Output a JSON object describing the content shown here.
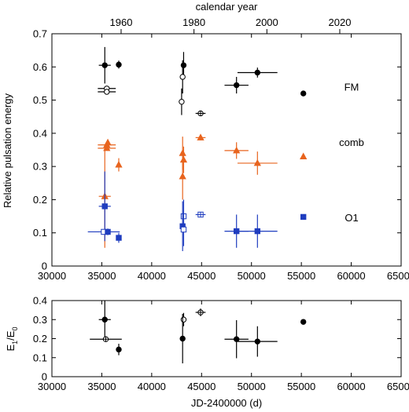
{
  "chart_data": [
    {
      "type": "scatter",
      "top_axis_label": "calendar year",
      "top_ticks": [
        "1960",
        "1980",
        "2000",
        "2020"
      ],
      "top_tick_years": [
        1960,
        1980,
        2000,
        2020
      ],
      "ylabel": "Relative pulsation energy",
      "xlim": [
        30000,
        65000
      ],
      "ylim": [
        0,
        0.7
      ],
      "xticks": [
        30000,
        35000,
        40000,
        45000,
        50000,
        55000,
        60000,
        65000
      ],
      "yticks": [
        0,
        0.1,
        0.2,
        0.3,
        0.4,
        0.5,
        0.6,
        0.7
      ],
      "colors": {
        "FM": "#000000",
        "comb": "#e8641e",
        "O1": "#1f3dbf"
      },
      "series": [
        {
          "name": "FM",
          "points": [
            {
              "x": 35300,
              "y": 0.605,
              "xerr": 600,
              "yerr": 0.055,
              "marker": "filled-circle"
            },
            {
              "x": 35500,
              "y": 0.535,
              "xerr": 900,
              "yerr": 0,
              "marker": "open-circle"
            },
            {
              "x": 35500,
              "y": 0.525,
              "xerr": 900,
              "yerr": 0,
              "marker": "open-circle"
            },
            {
              "x": 36700,
              "y": 0.607,
              "xerr": 0,
              "yerr": 0.012,
              "marker": "filled-circle"
            },
            {
              "x": 43200,
              "y": 0.605,
              "xerr": 0,
              "yerr": 0.04,
              "marker": "filled-circle"
            },
            {
              "x": 43100,
              "y": 0.57,
              "xerr": 0,
              "yerr": 0.05,
              "marker": "open-circle"
            },
            {
              "x": 43000,
              "y": 0.495,
              "xerr": 0,
              "yerr": 0.04,
              "marker": "open-circle"
            },
            {
              "x": 44900,
              "y": 0.46,
              "xerr": 500,
              "yerr": 0,
              "marker": "open-circle-cross"
            },
            {
              "x": 48500,
              "y": 0.545,
              "xerr": 1200,
              "yerr": 0.025,
              "marker": "filled-circle"
            },
            {
              "x": 50600,
              "y": 0.583,
              "xerr": 2000,
              "yerr": 0.015,
              "marker": "filled-circle"
            },
            {
              "x": 55200,
              "y": 0.52,
              "xerr": 0,
              "yerr": 0,
              "marker": "filled-circle"
            }
          ]
        },
        {
          "name": "comb",
          "points": [
            {
              "x": 35300,
              "y": 0.21,
              "xerr": 600,
              "yerr": 0.155,
              "marker": "filled-triangle"
            },
            {
              "x": 35500,
              "y": 0.365,
              "xerr": 900,
              "yerr": 0,
              "marker": "filled-triangle"
            },
            {
              "x": 35500,
              "y": 0.355,
              "xerr": 900,
              "yerr": 0,
              "marker": "filled-triangle"
            },
            {
              "x": 35600,
              "y": 0.372,
              "xerr": 0,
              "yerr": 0.008,
              "marker": "filled-triangle"
            },
            {
              "x": 36700,
              "y": 0.305,
              "xerr": 0,
              "yerr": 0.02,
              "marker": "filled-triangle"
            },
            {
              "x": 43100,
              "y": 0.34,
              "xerr": 0,
              "yerr": 0.05,
              "marker": "filled-triangle"
            },
            {
              "x": 43200,
              "y": 0.32,
              "xerr": 0,
              "yerr": 0.04,
              "marker": "filled-triangle"
            },
            {
              "x": 43100,
              "y": 0.27,
              "xerr": 0,
              "yerr": 0.07,
              "marker": "filled-triangle"
            },
            {
              "x": 44900,
              "y": 0.387,
              "xerr": 500,
              "yerr": 0.008,
              "marker": "filled-triangle"
            },
            {
              "x": 48500,
              "y": 0.348,
              "xerr": 1200,
              "yerr": 0.025,
              "marker": "filled-triangle"
            },
            {
              "x": 50600,
              "y": 0.31,
              "xerr": 2000,
              "yerr": 0.035,
              "marker": "filled-triangle"
            },
            {
              "x": 55200,
              "y": 0.33,
              "xerr": 0,
              "yerr": 0,
              "marker": "filled-triangle"
            }
          ]
        },
        {
          "name": "O1",
          "points": [
            {
              "x": 35300,
              "y": 0.18,
              "xerr": 600,
              "yerr": 0.105,
              "marker": "filled-square"
            },
            {
              "x": 35200,
              "y": 0.103,
              "xerr": 1600,
              "yerr": 0,
              "marker": "open-square"
            },
            {
              "x": 35600,
              "y": 0.103,
              "xerr": 0,
              "yerr": 0.01,
              "marker": "filled-square"
            },
            {
              "x": 36700,
              "y": 0.085,
              "xerr": 0,
              "yerr": 0.015,
              "marker": "filled-square"
            },
            {
              "x": 43200,
              "y": 0.15,
              "xerr": 0,
              "yerr": 0.05,
              "marker": "open-square"
            },
            {
              "x": 43100,
              "y": 0.12,
              "xerr": 0,
              "yerr": 0.075,
              "marker": "filled-square"
            },
            {
              "x": 43200,
              "y": 0.11,
              "xerr": 0,
              "yerr": 0.05,
              "marker": "open-square"
            },
            {
              "x": 44900,
              "y": 0.155,
              "xerr": 500,
              "yerr": 0,
              "marker": "open-square-cross"
            },
            {
              "x": 48500,
              "y": 0.105,
              "xerr": 1200,
              "yerr": 0.05,
              "marker": "filled-square"
            },
            {
              "x": 50600,
              "y": 0.105,
              "xerr": 2000,
              "yerr": 0.05,
              "marker": "filled-square"
            },
            {
              "x": 55200,
              "y": 0.148,
              "xerr": 0,
              "yerr": 0,
              "marker": "filled-square"
            }
          ]
        }
      ]
    },
    {
      "type": "scatter",
      "ylabel_main": "E",
      "ylabel_sub1": "1",
      "ylabel_slash": "/E",
      "ylabel_sub2": "0",
      "xlabel": "JD-2400000 (d)",
      "xlim": [
        30000,
        65000
      ],
      "ylim": [
        0,
        0.4
      ],
      "xticks": [
        30000,
        35000,
        40000,
        45000,
        50000,
        55000,
        60000,
        65000
      ],
      "yticks": [
        0,
        0.1,
        0.2,
        0.3,
        0.4
      ],
      "series": [
        {
          "points": [
            {
              "x": 35300,
              "y": 0.3,
              "xerr": 600,
              "yerr": 0.1,
              "marker": "filled-circle"
            },
            {
              "x": 35400,
              "y": 0.197,
              "xerr": 1600,
              "yerr": 0,
              "marker": "open-circle-cross"
            },
            {
              "x": 36700,
              "y": 0.143,
              "xerr": 0,
              "yerr": 0.03,
              "marker": "filled-circle"
            },
            {
              "x": 43200,
              "y": 0.3,
              "xerr": 0,
              "yerr": 0.035,
              "marker": "open-circle"
            },
            {
              "x": 43100,
              "y": 0.2,
              "xerr": 0,
              "yerr": 0.13,
              "marker": "filled-circle"
            },
            {
              "x": 44900,
              "y": 0.338,
              "xerr": 500,
              "yerr": 0.02,
              "marker": "open-circle-cross"
            },
            {
              "x": 48500,
              "y": 0.197,
              "xerr": 1200,
              "yerr": 0.1,
              "marker": "filled-circle"
            },
            {
              "x": 50600,
              "y": 0.185,
              "xerr": 2000,
              "yerr": 0.08,
              "marker": "filled-circle"
            },
            {
              "x": 55200,
              "y": 0.288,
              "xerr": 0,
              "yerr": 0,
              "marker": "filled-circle"
            }
          ]
        }
      ]
    }
  ]
}
